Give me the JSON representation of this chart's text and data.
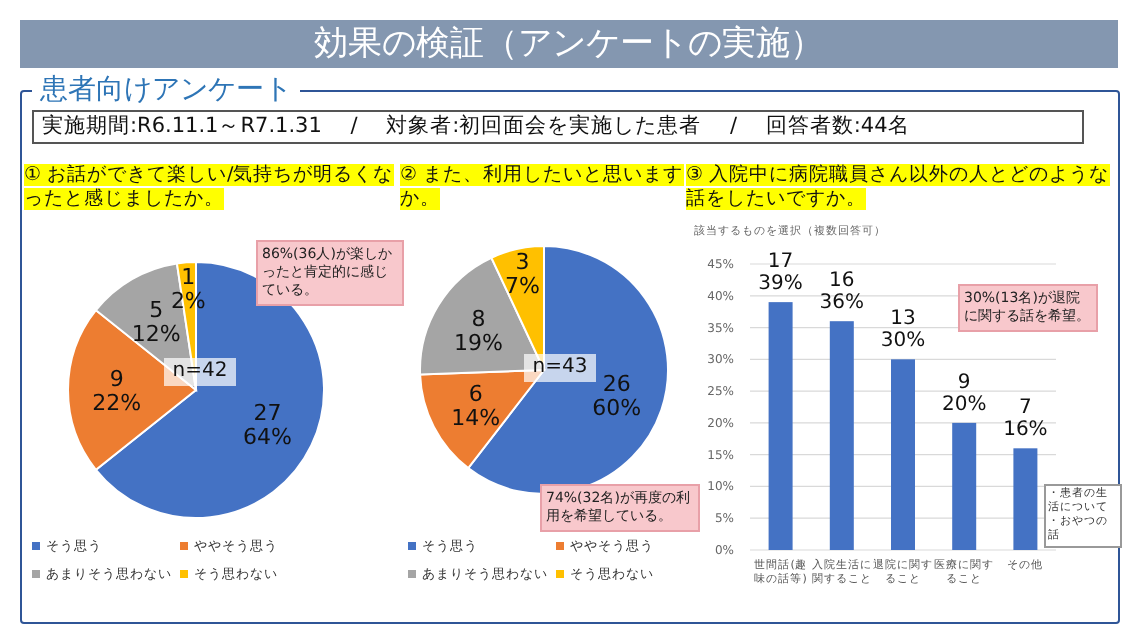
{
  "chart_data": [
    {
      "type": "other",
      "title": "効果の検証（アンケートの実施）",
      "subtitle": "患者向けアンケート",
      "annotations": [
        "実施期間:R6.11.1～R7.1.31　 /　 対象者:初回面会を実施した患者　 /　 回答者数:44名"
      ]
    },
    {
      "type": "pie",
      "title": "① お話ができて楽しい/気持ちが明るくなったと感じましたか。",
      "categories": [
        "そう思う",
        "ややそう思う",
        "あまりそう思わない",
        "そう思わない"
      ],
      "values": [
        27,
        9,
        5,
        1
      ],
      "colors": [
        "#4472c4",
        "#ed7d31",
        "#a5a5a5",
        "#ffc000"
      ],
      "value_labels": [
        "27\n64%",
        "9\n22%",
        "5\n12%",
        "1\n2%"
      ],
      "legend": "bottom",
      "annotations": [
        "n=42",
        "86%(36人)が楽しかったと肯定的に感じている。"
      ]
    },
    {
      "type": "pie",
      "title": "② また、利用したいと思いますか。",
      "categories": [
        "そう思う",
        "ややそう思う",
        "あまりそう思わない",
        "そう思わない"
      ],
      "values": [
        26,
        6,
        8,
        3
      ],
      "colors": [
        "#4472c4",
        "#ed7d31",
        "#a5a5a5",
        "#ffc000"
      ],
      "value_labels": [
        "26\n60%",
        "6\n14%",
        "8\n19%",
        "3\n7%"
      ],
      "legend": "bottom",
      "annotations": [
        "n=43",
        "74%(32名)が再度の利用を希望している。"
      ]
    },
    {
      "type": "bar",
      "title": "③ 入院中に病院職員さん以外の人とどのような話をしたいですか。",
      "subtitle": "該当するものを選択（複数回答可）",
      "categories": [
        "世間話(趣味の話等)",
        "入院生活に関すること",
        "退院に関すること",
        "医療に関すること",
        "その他"
      ],
      "values": [
        39,
        36,
        30,
        20,
        16
      ],
      "color": "#4472c4",
      "value_labels": [
        "17\n39%",
        "16\n36%",
        "13\n30%",
        "9\n20%",
        "7\n16%"
      ],
      "ylim": [
        0,
        45
      ],
      "yticks": [
        {
          "value": 0,
          "label": "0%"
        },
        {
          "value": 5,
          "label": "5%"
        },
        {
          "value": 10,
          "label": "10%"
        },
        {
          "value": 15,
          "label": "15%"
        },
        {
          "value": 20,
          "label": "20%"
        },
        {
          "value": 25,
          "label": "25%"
        },
        {
          "value": 30,
          "label": "30%"
        },
        {
          "value": 35,
          "label": "35%"
        },
        {
          "value": 40,
          "label": "40%"
        },
        {
          "value": 45,
          "label": "45%"
        }
      ],
      "grid": "y",
      "annotations": [
        "30%(13名)が退院に関する話を希望。",
        "・患者の生活について",
        "・おやつの話"
      ]
    }
  ]
}
